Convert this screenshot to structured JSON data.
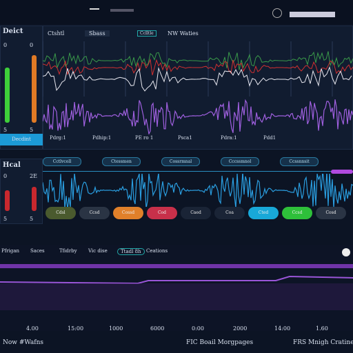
{
  "left": {
    "title": "Deict",
    "scale_top": [
      "0",
      "0"
    ],
    "scale_bottom": [
      "5",
      "5"
    ],
    "button": "Decdint",
    "section": "Hcal",
    "scale2_top": [
      "0",
      "2E"
    ],
    "scale2_bottom": [
      "5",
      "5"
    ]
  },
  "tabs": [
    "Ctshtl",
    "Sbass"
  ],
  "tag": "Cclltle",
  "tag_text": "NW Waties",
  "channels": [
    "Pdrg:1",
    "Pdhip:1",
    "PE ro 1",
    "Psca1",
    "Pdra:1",
    "Pdd1"
  ],
  "pills": [
    "Cctlvcoll",
    "Ctessmen",
    "Cossrmnal",
    "Cccssmnol",
    "Ccssnnsit"
  ],
  "buttons": [
    "Cdsl",
    "Ccsd",
    "Cossd",
    "Cod",
    "Caed",
    "Coa",
    "Cted",
    "Ccsd",
    "Cosd"
  ],
  "bottom_tabs": [
    "Pfrigan",
    "Saces",
    "Tfidrby",
    "Vic dise",
    "Ttadl 8h",
    "Ceations"
  ],
  "timeline": [
    "4.00",
    "15:00",
    "1000",
    "6000",
    "0:00",
    "2000",
    "14:00",
    "1.60"
  ],
  "footer": [
    "Now #Wafns",
    "FIC Boail Morgpages",
    "FRS Mnigh Cratines"
  ]
}
